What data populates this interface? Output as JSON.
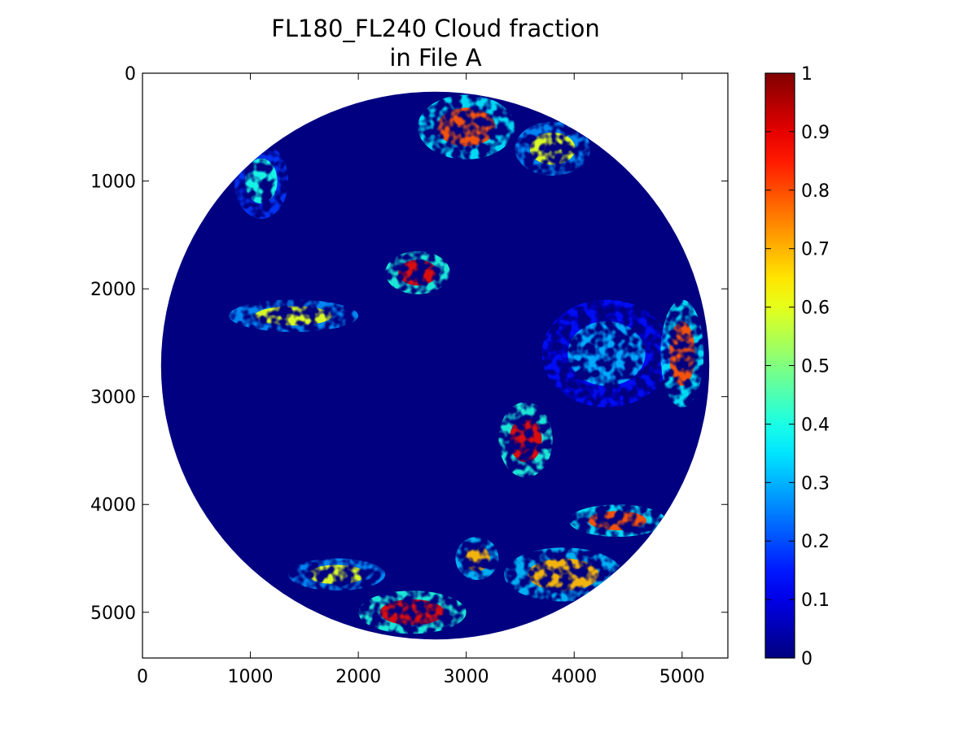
{
  "chart_data": {
    "type": "heatmap",
    "title": "FL180_FL240 Cloud fraction",
    "subtitle": "in File A",
    "xlabel": "",
    "ylabel": "",
    "xlim": [
      0,
      5424
    ],
    "ylim": [
      5424,
      0
    ],
    "x_ticks": [
      0,
      1000,
      2000,
      3000,
      4000,
      5000
    ],
    "y_ticks": [
      0,
      1000,
      2000,
      3000,
      4000,
      5000
    ],
    "colorbar": {
      "colormap": "jet",
      "min": 0,
      "max": 1,
      "ticks": [
        0,
        0.1,
        0.2,
        0.3,
        0.4,
        0.5,
        0.6,
        0.7,
        0.8,
        0.9,
        1
      ],
      "tick_labels": [
        "0",
        "0.1",
        "0.2",
        "0.3",
        "0.4",
        "0.5",
        "0.6",
        "0.7",
        "0.8",
        "0.9",
        "1"
      ]
    },
    "disk": {
      "center": [
        2712,
        2712
      ],
      "radius": 2540
    },
    "background_value": 0,
    "cloud_regions": [
      {
        "x": 3000,
        "y": 500,
        "rx": 450,
        "ry": 300,
        "intensity": 0.8
      },
      {
        "x": 3800,
        "y": 700,
        "rx": 350,
        "ry": 250,
        "intensity": 0.6
      },
      {
        "x": 1100,
        "y": 1000,
        "rx": 250,
        "ry": 350,
        "intensity": 0.4
      },
      {
        "x": 2550,
        "y": 1850,
        "rx": 300,
        "ry": 200,
        "intensity": 0.9
      },
      {
        "x": 1400,
        "y": 2250,
        "rx": 600,
        "ry": 150,
        "intensity": 0.6
      },
      {
        "x": 3550,
        "y": 3400,
        "rx": 250,
        "ry": 350,
        "intensity": 0.9
      },
      {
        "x": 4300,
        "y": 2600,
        "rx": 600,
        "ry": 500,
        "intensity": 0.3
      },
      {
        "x": 5000,
        "y": 2600,
        "rx": 200,
        "ry": 500,
        "intensity": 0.8
      },
      {
        "x": 4400,
        "y": 4150,
        "rx": 450,
        "ry": 150,
        "intensity": 0.8
      },
      {
        "x": 3900,
        "y": 4650,
        "rx": 550,
        "ry": 250,
        "intensity": 0.7
      },
      {
        "x": 2500,
        "y": 5000,
        "rx": 500,
        "ry": 200,
        "intensity": 0.9
      },
      {
        "x": 1800,
        "y": 4650,
        "rx": 450,
        "ry": 150,
        "intensity": 0.6
      },
      {
        "x": 3100,
        "y": 4500,
        "rx": 200,
        "ry": 200,
        "intensity": 0.7
      }
    ]
  }
}
